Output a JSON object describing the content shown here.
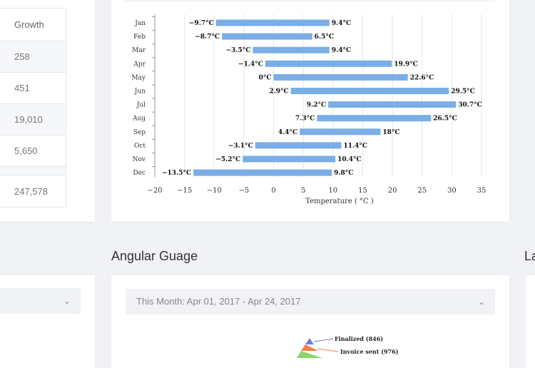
{
  "table": {
    "header": "Growth",
    "rows": [
      "258",
      "451",
      "19,010",
      "5,650"
    ],
    "total": "247,578"
  },
  "chart_data": {
    "type": "bar",
    "orientation": "horizontal-range",
    "categories": [
      "Jan",
      "Feb",
      "Mar",
      "Apr",
      "May",
      "Jun",
      "Jul",
      "Aug",
      "Sep",
      "Oct",
      "Nov",
      "Dec"
    ],
    "low": [
      -9.7,
      -8.7,
      -3.5,
      -1.4,
      0,
      2.9,
      9.2,
      7.3,
      4.4,
      -3.1,
      -5.2,
      -13.5
    ],
    "high": [
      9.4,
      6.5,
      9.4,
      19.9,
      22.6,
      29.5,
      30.7,
      26.5,
      18,
      11.4,
      10.4,
      9.8
    ],
    "low_labels": [
      "−9.7°C",
      "−8.7°C",
      "−3.5°C",
      "−1.4°C",
      "0°C",
      "2.9°C",
      "9.2°C",
      "7.3°C",
      "4.4°C",
      "−3.1°C",
      "−5.2°C",
      "−13.5°C"
    ],
    "high_labels": [
      "9.4°C",
      "6.5°C",
      "9.4°C",
      "19.9°C",
      "22.6°C",
      "29.5°C",
      "30.7°C",
      "26.5°C",
      "18°C",
      "11.4°C",
      "10.4°C",
      "9.8°C"
    ],
    "xlabel": "Temperature ( °C )",
    "xlim": [
      -20,
      35
    ],
    "xticks": [
      -20,
      -15,
      -10,
      -5,
      0,
      5,
      10,
      15,
      20,
      25,
      30,
      35
    ],
    "xtick_labels": [
      "−20",
      "−15",
      "−10",
      "−5",
      "0",
      "5",
      "10",
      "15",
      "20",
      "25",
      "30",
      "35"
    ],
    "grid": true,
    "bar_color": "#7aaee6"
  },
  "gauge": {
    "title": "Angular Guage",
    "date_range": "This Month: Apr 01, 2017 - Apr 24, 2017",
    "funnel_labels": [
      "Finalized (846)",
      "Invoice sent (976)"
    ],
    "funnel_colors": [
      "#7b7bd6",
      "#f07f4a",
      "#8fd36c"
    ]
  },
  "right_section": {
    "title": "La"
  }
}
